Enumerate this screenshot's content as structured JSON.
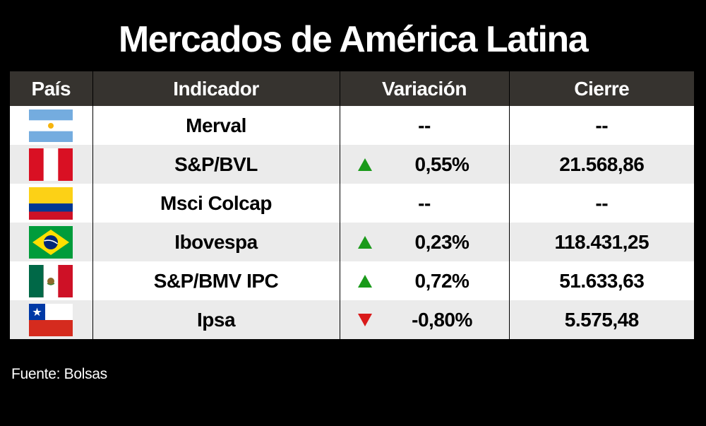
{
  "title": "Mercados de América Latina",
  "source": "Fuente: Bolsas",
  "colors": {
    "up": "#1a9a1a",
    "down": "#d91a1a",
    "header_bg": "#36332f"
  },
  "chart_data": {
    "type": "table",
    "title": "Mercados de América Latina",
    "columns": [
      "País",
      "Indicador",
      "Variación",
      "Cierre"
    ],
    "rows": [
      {
        "flag": "argentina-flag",
        "indicador": "Merval",
        "direction": "none",
        "variacion": "--",
        "cierre": "--"
      },
      {
        "flag": "peru-flag",
        "indicador": "S&P/BVL",
        "direction": "up",
        "variacion": "0,55%",
        "cierre": "21.568,86"
      },
      {
        "flag": "colombia-flag",
        "indicador": "Msci Colcap",
        "direction": "none",
        "variacion": "--",
        "cierre": "--"
      },
      {
        "flag": "brazil-flag",
        "indicador": "Ibovespa",
        "direction": "up",
        "variacion": "0,23%",
        "cierre": "118.431,25"
      },
      {
        "flag": "mexico-flag",
        "indicador": "S&P/BMV IPC",
        "direction": "up",
        "variacion": "0,72%",
        "cierre": "51.633,63"
      },
      {
        "flag": "chile-flag",
        "indicador": "Ipsa",
        "direction": "down",
        "variacion": "-0,80%",
        "cierre": "5.575,48"
      }
    ]
  }
}
